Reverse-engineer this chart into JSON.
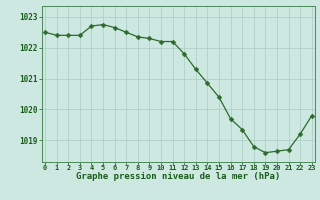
{
  "x": [
    0,
    1,
    2,
    3,
    4,
    5,
    6,
    7,
    8,
    9,
    10,
    11,
    12,
    13,
    14,
    15,
    16,
    17,
    18,
    19,
    20,
    21,
    22,
    23
  ],
  "y": [
    1022.5,
    1022.4,
    1022.4,
    1022.4,
    1022.7,
    1022.75,
    1022.65,
    1022.5,
    1022.35,
    1022.3,
    1022.2,
    1022.2,
    1021.8,
    1021.3,
    1020.85,
    1020.4,
    1019.7,
    1019.35,
    1018.8,
    1018.6,
    1018.65,
    1018.7,
    1019.2,
    1019.8
  ],
  "line_color": "#2d6a2d",
  "marker": "D",
  "marker_size": 2.5,
  "bg_color": "#cce8e0",
  "grid_color": "#b0d0c8",
  "xlabel": "Graphe pression niveau de la mer (hPa)",
  "xlabel_color": "#1a5c1a",
  "tick_color": "#1a5c1a",
  "ylim_min": 1018.3,
  "ylim_max": 1023.35,
  "yticks": [
    1019,
    1020,
    1021,
    1022,
    1023
  ],
  "border_color": "#4a8a5a",
  "xlim_min": -0.3,
  "xlim_max": 23.3
}
